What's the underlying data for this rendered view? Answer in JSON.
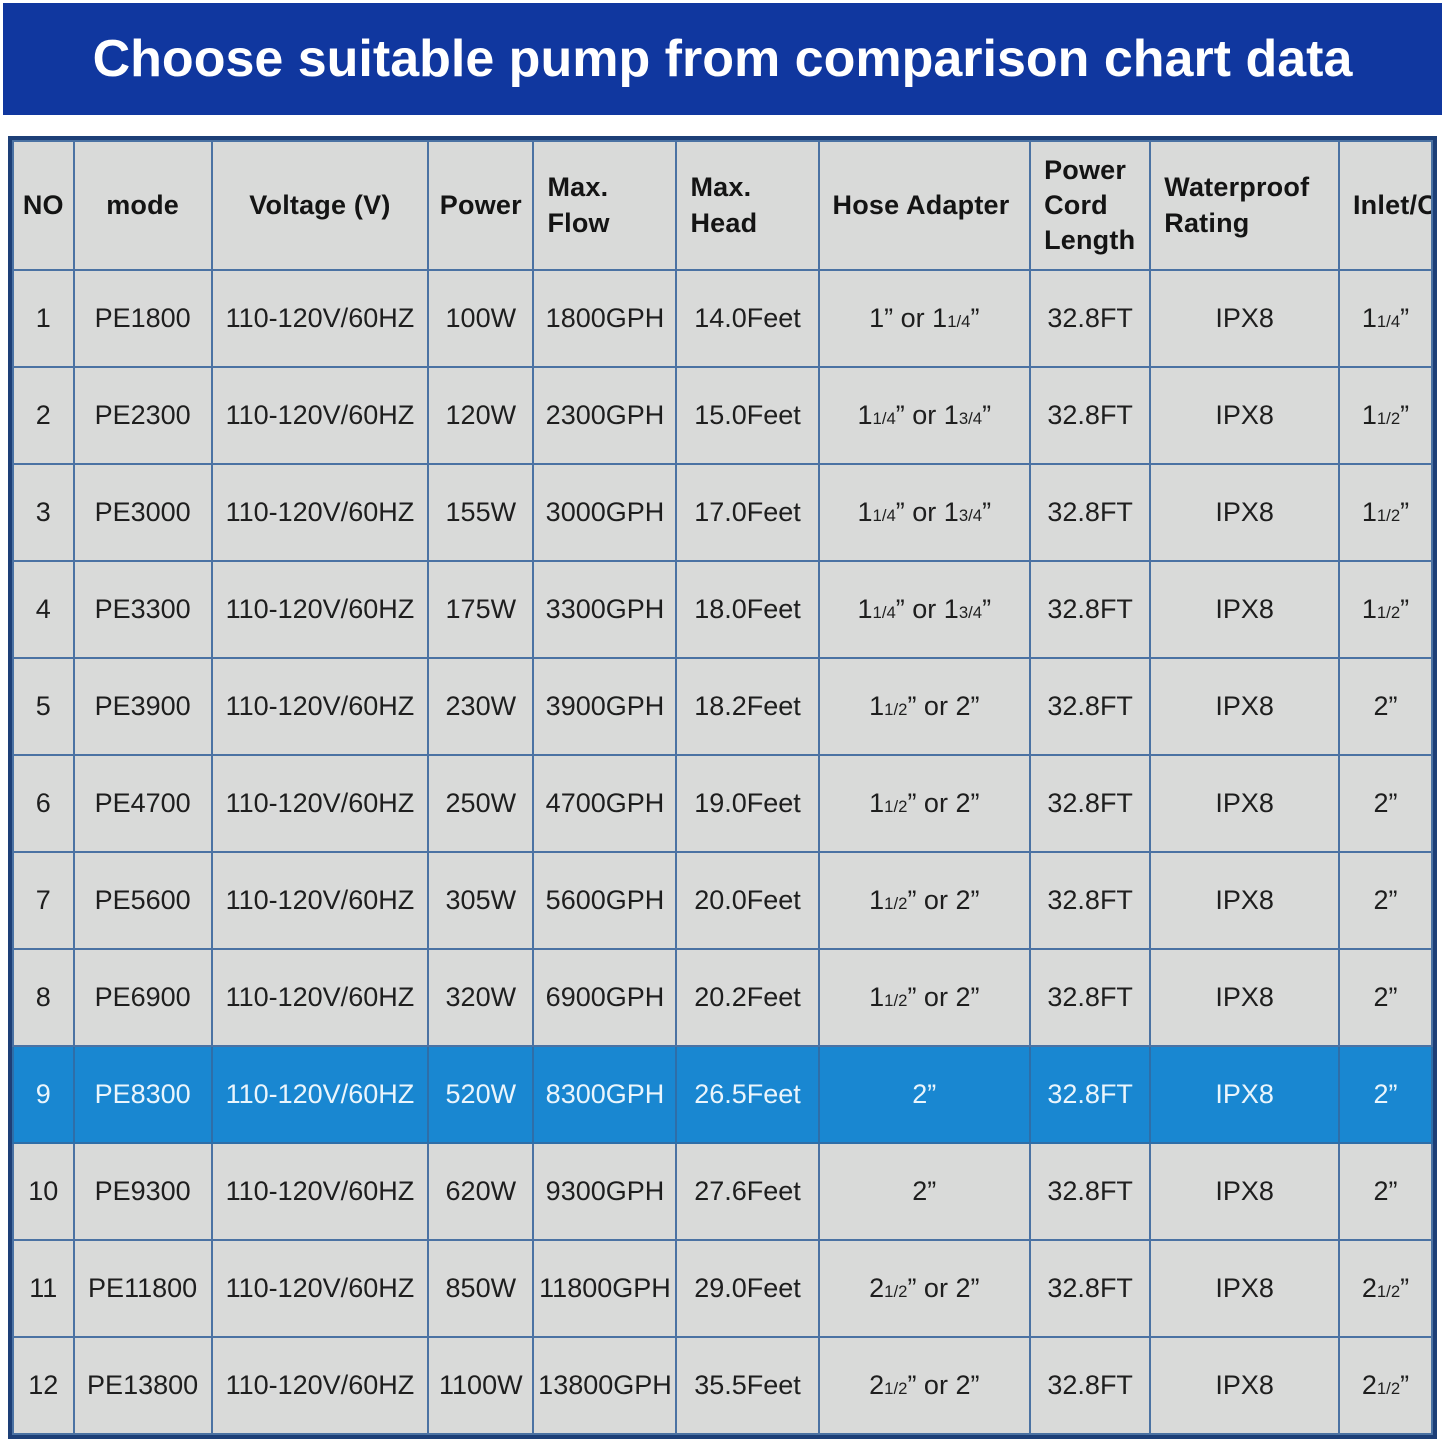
{
  "colors": {
    "banner_bg": "#10379f",
    "banner_fg": "#ffffff",
    "cell_bg": "#d9dad9",
    "grid_line": "#4b72a3",
    "outer_border": "#1d3f77",
    "highlight_bg": "#1987d1",
    "highlight_fg": "#eaf5fc",
    "text": "#1e1e1e"
  },
  "chart_data": {
    "type": "table",
    "title": "Choose suitable pump from comparison chart data",
    "columns": [
      "NO",
      "mode",
      "Voltage (V)",
      "Power",
      "Max. Flow",
      "Max. Head",
      "Hose Adapter",
      "Power Cord Length",
      "Waterproof Rating",
      "Inlet/Outlet"
    ],
    "column_keys": [
      "no",
      "mode",
      "voltage",
      "power",
      "max-flow",
      "max-head",
      "hose-adapter",
      "power-cord-length",
      "waterproof-rating",
      "inlet-outlet"
    ],
    "highlighted_row_no": "9",
    "rows": [
      [
        "1",
        "PE1800",
        "110-120V/60HZ",
        "100W",
        "1800GPH",
        "14.0Feet",
        "1” or 1¼”",
        "32.8FT",
        "IPX8",
        "1¼”"
      ],
      [
        "2",
        "PE2300",
        "110-120V/60HZ",
        "120W",
        "2300GPH",
        "15.0Feet",
        "1¼” or 1¾”",
        "32.8FT",
        "IPX8",
        "1½”"
      ],
      [
        "3",
        "PE3000",
        "110-120V/60HZ",
        "155W",
        "3000GPH",
        "17.0Feet",
        "1¼” or 1¾”",
        "32.8FT",
        "IPX8",
        "1½”"
      ],
      [
        "4",
        "PE3300",
        "110-120V/60HZ",
        "175W",
        "3300GPH",
        "18.0Feet",
        "1¼” or 1¾”",
        "32.8FT",
        "IPX8",
        "1½”"
      ],
      [
        "5",
        "PE3900",
        "110-120V/60HZ",
        "230W",
        "3900GPH",
        "18.2Feet",
        "1½” or 2”",
        "32.8FT",
        "IPX8",
        "2”"
      ],
      [
        "6",
        "PE4700",
        "110-120V/60HZ",
        "250W",
        "4700GPH",
        "19.0Feet",
        "1½” or 2”",
        "32.8FT",
        "IPX8",
        "2”"
      ],
      [
        "7",
        "PE5600",
        "110-120V/60HZ",
        "305W",
        "5600GPH",
        "20.0Feet",
        "1½” or 2”",
        "32.8FT",
        "IPX8",
        "2”"
      ],
      [
        "8",
        "PE6900",
        "110-120V/60HZ",
        "320W",
        "6900GPH",
        "20.2Feet",
        "1½” or 2”",
        "32.8FT",
        "IPX8",
        "2”"
      ],
      [
        "9",
        "PE8300",
        "110-120V/60HZ",
        "520W",
        "8300GPH",
        "26.5Feet",
        "2”",
        "32.8FT",
        "IPX8",
        "2”"
      ],
      [
        "10",
        "PE9300",
        "110-120V/60HZ",
        "620W",
        "9300GPH",
        "27.6Feet",
        "2”",
        "32.8FT",
        "IPX8",
        "2”"
      ],
      [
        "11",
        "PE11800",
        "110-120V/60HZ",
        "850W",
        "11800GPH",
        "29.0Feet",
        "2½” or 2”",
        "32.8FT",
        "IPX8",
        "2½”"
      ],
      [
        "12",
        "PE13800",
        "110-120V/60HZ",
        "1100W",
        "13800GPH",
        "35.5Feet",
        "2½” or 2”",
        "32.8FT",
        "IPX8",
        "2½”"
      ]
    ]
  }
}
